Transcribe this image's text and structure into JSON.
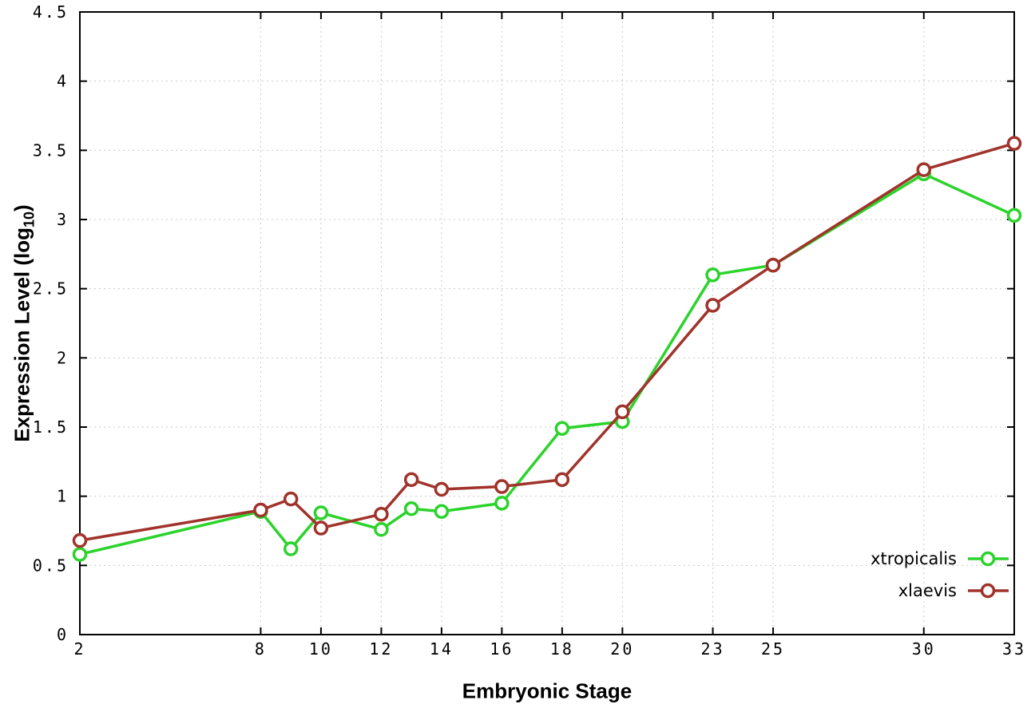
{
  "labels": {
    "x_axis": "Embryonic Stage",
    "y_axis_main": "Expression Level (log",
    "y_axis_sub": "10",
    "y_axis_end": ")"
  },
  "chart_data": {
    "type": "line",
    "title": "",
    "xlabel": "Embryonic Stage",
    "ylabel": "Expression Level (log10)",
    "x": [
      2,
      8,
      9,
      10,
      12,
      13,
      14,
      16,
      18,
      20,
      23,
      25,
      30,
      33
    ],
    "series": [
      {
        "name": "xtropicalis",
        "color": "#2bd32b",
        "values": [
          0.58,
          0.89,
          0.62,
          0.88,
          0.76,
          0.91,
          0.89,
          0.95,
          1.49,
          1.54,
          2.6,
          2.67,
          3.33,
          3.03
        ]
      },
      {
        "name": "xlaevis",
        "color": "#a0332b",
        "values": [
          0.68,
          0.9,
          0.98,
          0.77,
          0.87,
          1.12,
          1.05,
          1.07,
          1.12,
          1.61,
          2.38,
          2.67,
          3.36,
          3.55
        ]
      }
    ],
    "xlim": [
      2,
      33
    ],
    "ylim": [
      0,
      4.5
    ],
    "x_ticks": [
      2,
      8,
      10,
      12,
      14,
      16,
      18,
      20,
      23,
      25,
      30,
      33
    ],
    "y_ticks": [
      0,
      0.5,
      1,
      1.5,
      2,
      2.5,
      3,
      3.5,
      4,
      4.5
    ],
    "grid": true,
    "grid_color": "#c9c9c9",
    "border_color": "#000000",
    "marker": "open-circle",
    "legend_position": "bottom-right"
  }
}
